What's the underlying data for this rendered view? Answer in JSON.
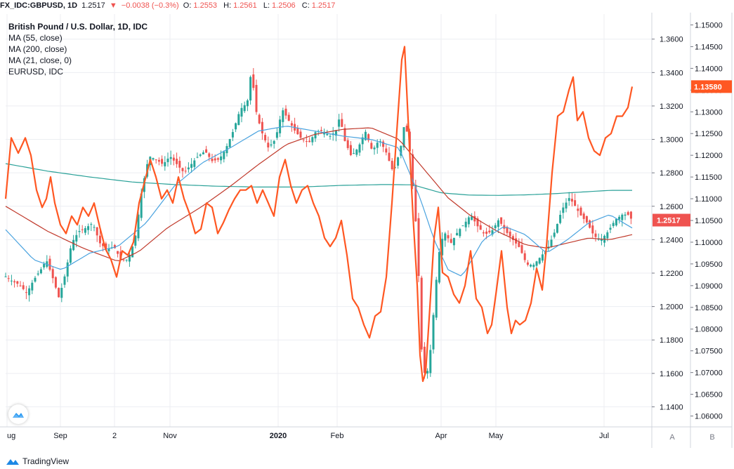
{
  "topbar": {
    "symbol": "FX_IDC:GBPUSD, 1D",
    "last": "1.2517",
    "change": "−0.0038 (−0.3%)",
    "o_label": "O:",
    "o": "1.2553",
    "h_label": "H:",
    "h": "1.2561",
    "l_label": "L:",
    "l": "1.2506",
    "c_label": "C:",
    "c": "1.2517",
    "down_color": "#ef5350"
  },
  "legend": {
    "title": "British Pound / U.S. Dollar, 1D, IDC",
    "ma55": "MA (55, close)",
    "ma200": "MA (200, close)",
    "ma21": "MA (21, close, 0)",
    "overlay": "EURUSD, IDC"
  },
  "axis_buttons": {
    "a": "A",
    "b": "B"
  },
  "footer": {
    "brand": "TradingView"
  },
  "chart_data": {
    "type": "line",
    "title": "British Pound / U.S. Dollar, 1D, IDC",
    "x_tick_labels": [
      "ug",
      "Sep",
      "2",
      "Nov",
      "2020",
      "Feb",
      "Apr",
      "May",
      "Jul"
    ],
    "left_axis": {
      "name": "GBPUSD",
      "range": [
        1.128,
        1.375
      ],
      "ticks": [
        "1.3600",
        "1.3400",
        "1.3200",
        "1.3000",
        "1.2800",
        "1.2600",
        "1.2400",
        "1.2200",
        "1.2000",
        "1.1800",
        "1.1600",
        "1.1400"
      ],
      "last_price_label": "1.2517"
    },
    "right_axis": {
      "name": "EURUSD",
      "range": [
        1.0575,
        1.1525
      ],
      "ticks": [
        "1.15000",
        "1.14500",
        "1.14000",
        "1.13500",
        "1.13000",
        "1.12500",
        "1.12000",
        "1.11500",
        "1.11000",
        "1.10500",
        "1.10000",
        "1.09500",
        "1.09000",
        "1.08500",
        "1.08000",
        "1.07500",
        "1.07000",
        "1.06500",
        "1.06000"
      ],
      "last_price_label": "1.13580"
    },
    "grid": true,
    "colors": {
      "up": "#26a69a",
      "down": "#ef5350",
      "ma55": "#4aa3df",
      "ma200": "#c0392b",
      "ma21": "#2aa198",
      "eurusd": "#ff5722",
      "last_gbp_bg": "#ef5350",
      "last_eur_bg": "#ff5722"
    },
    "series": [
      {
        "name": "GBPUSD",
        "kind": "candles",
        "anchors": [
          [
            0,
            1.218
          ],
          [
            10,
            1.215
          ],
          [
            20,
            1.213
          ],
          [
            30,
            1.208
          ],
          [
            40,
            1.216
          ],
          [
            50,
            1.222
          ],
          [
            58,
            1.228
          ],
          [
            68,
            1.216
          ],
          [
            76,
            1.205
          ],
          [
            84,
            1.218
          ],
          [
            94,
            1.238
          ],
          [
            104,
            1.245
          ],
          [
            114,
            1.247
          ],
          [
            124,
            1.25
          ],
          [
            134,
            1.238
          ],
          [
            144,
            1.234
          ],
          [
            154,
            1.236
          ],
          [
            164,
            1.228
          ],
          [
            174,
            1.228
          ],
          [
            184,
            1.24
          ],
          [
            194,
            1.27
          ],
          [
            204,
            1.29
          ],
          [
            214,
            1.288
          ],
          [
            224,
            1.285
          ],
          [
            234,
            1.29
          ],
          [
            244,
            1.285
          ],
          [
            254,
            1.28
          ],
          [
            264,
            1.285
          ],
          [
            274,
            1.29
          ],
          [
            284,
            1.293
          ],
          [
            294,
            1.287
          ],
          [
            304,
            1.288
          ],
          [
            314,
            1.295
          ],
          [
            324,
            1.305
          ],
          [
            334,
            1.318
          ],
          [
            344,
            1.322
          ],
          [
            350,
            1.342
          ],
          [
            356,
            1.318
          ],
          [
            364,
            1.305
          ],
          [
            374,
            1.295
          ],
          [
            384,
            1.3
          ],
          [
            394,
            1.318
          ],
          [
            402,
            1.312
          ],
          [
            412,
            1.305
          ],
          [
            422,
            1.3
          ],
          [
            432,
            1.298
          ],
          [
            442,
            1.305
          ],
          [
            452,
            1.305
          ],
          [
            462,
            1.302
          ],
          [
            470,
            1.305
          ],
          [
            476,
            1.314
          ],
          [
            482,
            1.3
          ],
          [
            492,
            1.29
          ],
          [
            502,
            1.295
          ],
          [
            512,
            1.305
          ],
          [
            522,
            1.293
          ],
          [
            532,
            1.3
          ],
          [
            542,
            1.292
          ],
          [
            552,
            1.28
          ],
          [
            562,
            1.294
          ],
          [
            568,
            1.31
          ],
          [
            574,
            1.3
          ],
          [
            580,
            1.27
          ],
          [
            586,
            1.24
          ],
          [
            592,
            1.175
          ],
          [
            598,
            1.155
          ],
          [
            604,
            1.17
          ],
          [
            610,
            1.2
          ],
          [
            616,
            1.23
          ],
          [
            624,
            1.245
          ],
          [
            634,
            1.238
          ],
          [
            644,
            1.245
          ],
          [
            654,
            1.25
          ],
          [
            662,
            1.255
          ],
          [
            672,
            1.248
          ],
          [
            682,
            1.243
          ],
          [
            692,
            1.245
          ],
          [
            702,
            1.252
          ],
          [
            712,
            1.245
          ],
          [
            722,
            1.24
          ],
          [
            732,
            1.235
          ],
          [
            742,
            1.225
          ],
          [
            752,
            1.225
          ],
          [
            762,
            1.23
          ],
          [
            772,
            1.235
          ],
          [
            782,
            1.245
          ],
          [
            792,
            1.258
          ],
          [
            802,
            1.265
          ],
          [
            808,
            1.262
          ],
          [
            818,
            1.255
          ],
          [
            828,
            1.25
          ],
          [
            838,
            1.242
          ],
          [
            848,
            1.24
          ],
          [
            858,
            1.245
          ],
          [
            868,
            1.252
          ],
          [
            878,
            1.255
          ],
          [
            886,
            1.255
          ],
          [
            892,
            1.2517
          ]
        ]
      },
      {
        "name": "MA (55, close)",
        "kind": "line",
        "anchors": [
          [
            0,
            1.246
          ],
          [
            40,
            1.228
          ],
          [
            80,
            1.222
          ],
          [
            120,
            1.232
          ],
          [
            160,
            1.236
          ],
          [
            200,
            1.25
          ],
          [
            240,
            1.272
          ],
          [
            280,
            1.286
          ],
          [
            320,
            1.295
          ],
          [
            360,
            1.305
          ],
          [
            400,
            1.308
          ],
          [
            440,
            1.305
          ],
          [
            480,
            1.302
          ],
          [
            520,
            1.3
          ],
          [
            560,
            1.295
          ],
          [
            590,
            1.265
          ],
          [
            610,
            1.24
          ],
          [
            630,
            1.222
          ],
          [
            650,
            1.218
          ],
          [
            680,
            1.24
          ],
          [
            710,
            1.248
          ],
          [
            740,
            1.243
          ],
          [
            770,
            1.232
          ],
          [
            800,
            1.24
          ],
          [
            830,
            1.25
          ],
          [
            860,
            1.255
          ],
          [
            892,
            1.247
          ]
        ]
      },
      {
        "name": "MA (200, close)",
        "kind": "line",
        "anchors": [
          [
            0,
            1.26
          ],
          [
            60,
            1.245
          ],
          [
            110,
            1.235
          ],
          [
            160,
            1.227
          ],
          [
            190,
            1.233
          ],
          [
            230,
            1.247
          ],
          [
            280,
            1.26
          ],
          [
            320,
            1.272
          ],
          [
            360,
            1.285
          ],
          [
            400,
            1.297
          ],
          [
            440,
            1.303
          ],
          [
            480,
            1.306
          ],
          [
            520,
            1.307
          ],
          [
            560,
            1.3
          ],
          [
            600,
            1.28
          ],
          [
            630,
            1.265
          ],
          [
            660,
            1.255
          ],
          [
            700,
            1.245
          ],
          [
            740,
            1.237
          ],
          [
            770,
            1.235
          ],
          [
            800,
            1.238
          ],
          [
            830,
            1.241
          ],
          [
            860,
            1.24
          ],
          [
            892,
            1.243
          ]
        ]
      },
      {
        "name": "MA (21, close, 0)",
        "kind": "line",
        "anchors": [
          [
            0,
            1.2855
          ],
          [
            60,
            1.281
          ],
          [
            120,
            1.2775
          ],
          [
            180,
            1.2745
          ],
          [
            240,
            1.273
          ],
          [
            300,
            1.272
          ],
          [
            360,
            1.2715
          ],
          [
            420,
            1.2715
          ],
          [
            480,
            1.2725
          ],
          [
            540,
            1.273
          ],
          [
            580,
            1.2728
          ],
          [
            620,
            1.268
          ],
          [
            660,
            1.2667
          ],
          [
            700,
            1.2665
          ],
          [
            740,
            1.2668
          ],
          [
            780,
            1.2675
          ],
          [
            820,
            1.2685
          ],
          [
            860,
            1.2695
          ],
          [
            892,
            1.2695
          ]
        ]
      },
      {
        "name": "EURUSD, IDC",
        "kind": "line",
        "anchors": [
          [
            0,
            1.11
          ],
          [
            8,
            1.124
          ],
          [
            18,
            1.1205
          ],
          [
            28,
            1.124
          ],
          [
            36,
            1.12
          ],
          [
            44,
            1.112
          ],
          [
            52,
            1.108
          ],
          [
            58,
            1.11
          ],
          [
            64,
            1.115
          ],
          [
            70,
            1.109
          ],
          [
            78,
            1.104
          ],
          [
            86,
            1.102
          ],
          [
            94,
            1.106
          ],
          [
            102,
            1.104
          ],
          [
            110,
            1.108
          ],
          [
            118,
            1.106
          ],
          [
            126,
            1.109
          ],
          [
            134,
            1.1035
          ],
          [
            142,
            1.0985
          ],
          [
            150,
            1.096
          ],
          [
            158,
            1.092
          ],
          [
            166,
            1.098
          ],
          [
            174,
            1.097
          ],
          [
            182,
            1.1
          ],
          [
            190,
            1.109
          ],
          [
            198,
            1.114
          ],
          [
            206,
            1.119
          ],
          [
            214,
            1.115
          ],
          [
            222,
            1.11
          ],
          [
            230,
            1.112
          ],
          [
            238,
            1.109
          ],
          [
            246,
            1.115
          ],
          [
            254,
            1.11
          ],
          [
            262,
            1.1065
          ],
          [
            270,
            1.102
          ],
          [
            278,
            1.103
          ],
          [
            286,
            1.109
          ],
          [
            294,
            1.108
          ],
          [
            302,
            1.102
          ],
          [
            310,
            1.1045
          ],
          [
            318,
            1.1075
          ],
          [
            326,
            1.11
          ],
          [
            334,
            1.112
          ],
          [
            342,
            1.112
          ],
          [
            350,
            1.113
          ],
          [
            358,
            1.109
          ],
          [
            366,
            1.112
          ],
          [
            374,
            1.109
          ],
          [
            382,
            1.106
          ],
          [
            390,
            1.115
          ],
          [
            398,
            1.119
          ],
          [
            406,
            1.113
          ],
          [
            414,
            1.109
          ],
          [
            422,
            1.112
          ],
          [
            430,
            1.113
          ],
          [
            438,
            1.109
          ],
          [
            446,
            1.106
          ],
          [
            454,
            1.101
          ],
          [
            462,
            1.099
          ],
          [
            470,
            1.101
          ],
          [
            478,
            1.105
          ],
          [
            486,
            1.097
          ],
          [
            494,
            1.087
          ],
          [
            502,
            1.085
          ],
          [
            510,
            1.081
          ],
          [
            518,
            1.078
          ],
          [
            526,
            1.083
          ],
          [
            534,
            1.084
          ],
          [
            542,
            1.092
          ],
          [
            550,
            1.109
          ],
          [
            558,
            1.128
          ],
          [
            564,
            1.142
          ],
          [
            568,
            1.145
          ],
          [
            574,
            1.125
          ],
          [
            580,
            1.106
          ],
          [
            586,
            1.09
          ],
          [
            590,
            1.074
          ],
          [
            594,
            1.068
          ],
          [
            598,
            1.07
          ],
          [
            604,
            1.085
          ],
          [
            610,
            1.101
          ],
          [
            616,
            1.108
          ],
          [
            622,
            1.093
          ],
          [
            630,
            1.092
          ],
          [
            638,
            1.088
          ],
          [
            646,
            1.086
          ],
          [
            654,
            1.09
          ],
          [
            662,
            1.098
          ],
          [
            670,
            1.087
          ],
          [
            678,
            1.085
          ],
          [
            686,
            1.079
          ],
          [
            692,
            1.081
          ],
          [
            698,
            1.088
          ],
          [
            706,
            1.098
          ],
          [
            714,
            1.085
          ],
          [
            720,
            1.079
          ],
          [
            726,
            1.082
          ],
          [
            732,
            1.081
          ],
          [
            740,
            1.082
          ],
          [
            748,
            1.086
          ],
          [
            756,
            1.094
          ],
          [
            764,
            1.089
          ],
          [
            770,
            1.099
          ],
          [
            778,
            1.116
          ],
          [
            786,
            1.129
          ],
          [
            794,
            1.13
          ],
          [
            802,
            1.135
          ],
          [
            808,
            1.138
          ],
          [
            814,
            1.128
          ],
          [
            822,
            1.13
          ],
          [
            830,
            1.124
          ],
          [
            838,
            1.121
          ],
          [
            846,
            1.12
          ],
          [
            854,
            1.124
          ],
          [
            862,
            1.125
          ],
          [
            870,
            1.129
          ],
          [
            878,
            1.129
          ],
          [
            886,
            1.131
          ],
          [
            892,
            1.1358
          ]
        ]
      }
    ]
  }
}
